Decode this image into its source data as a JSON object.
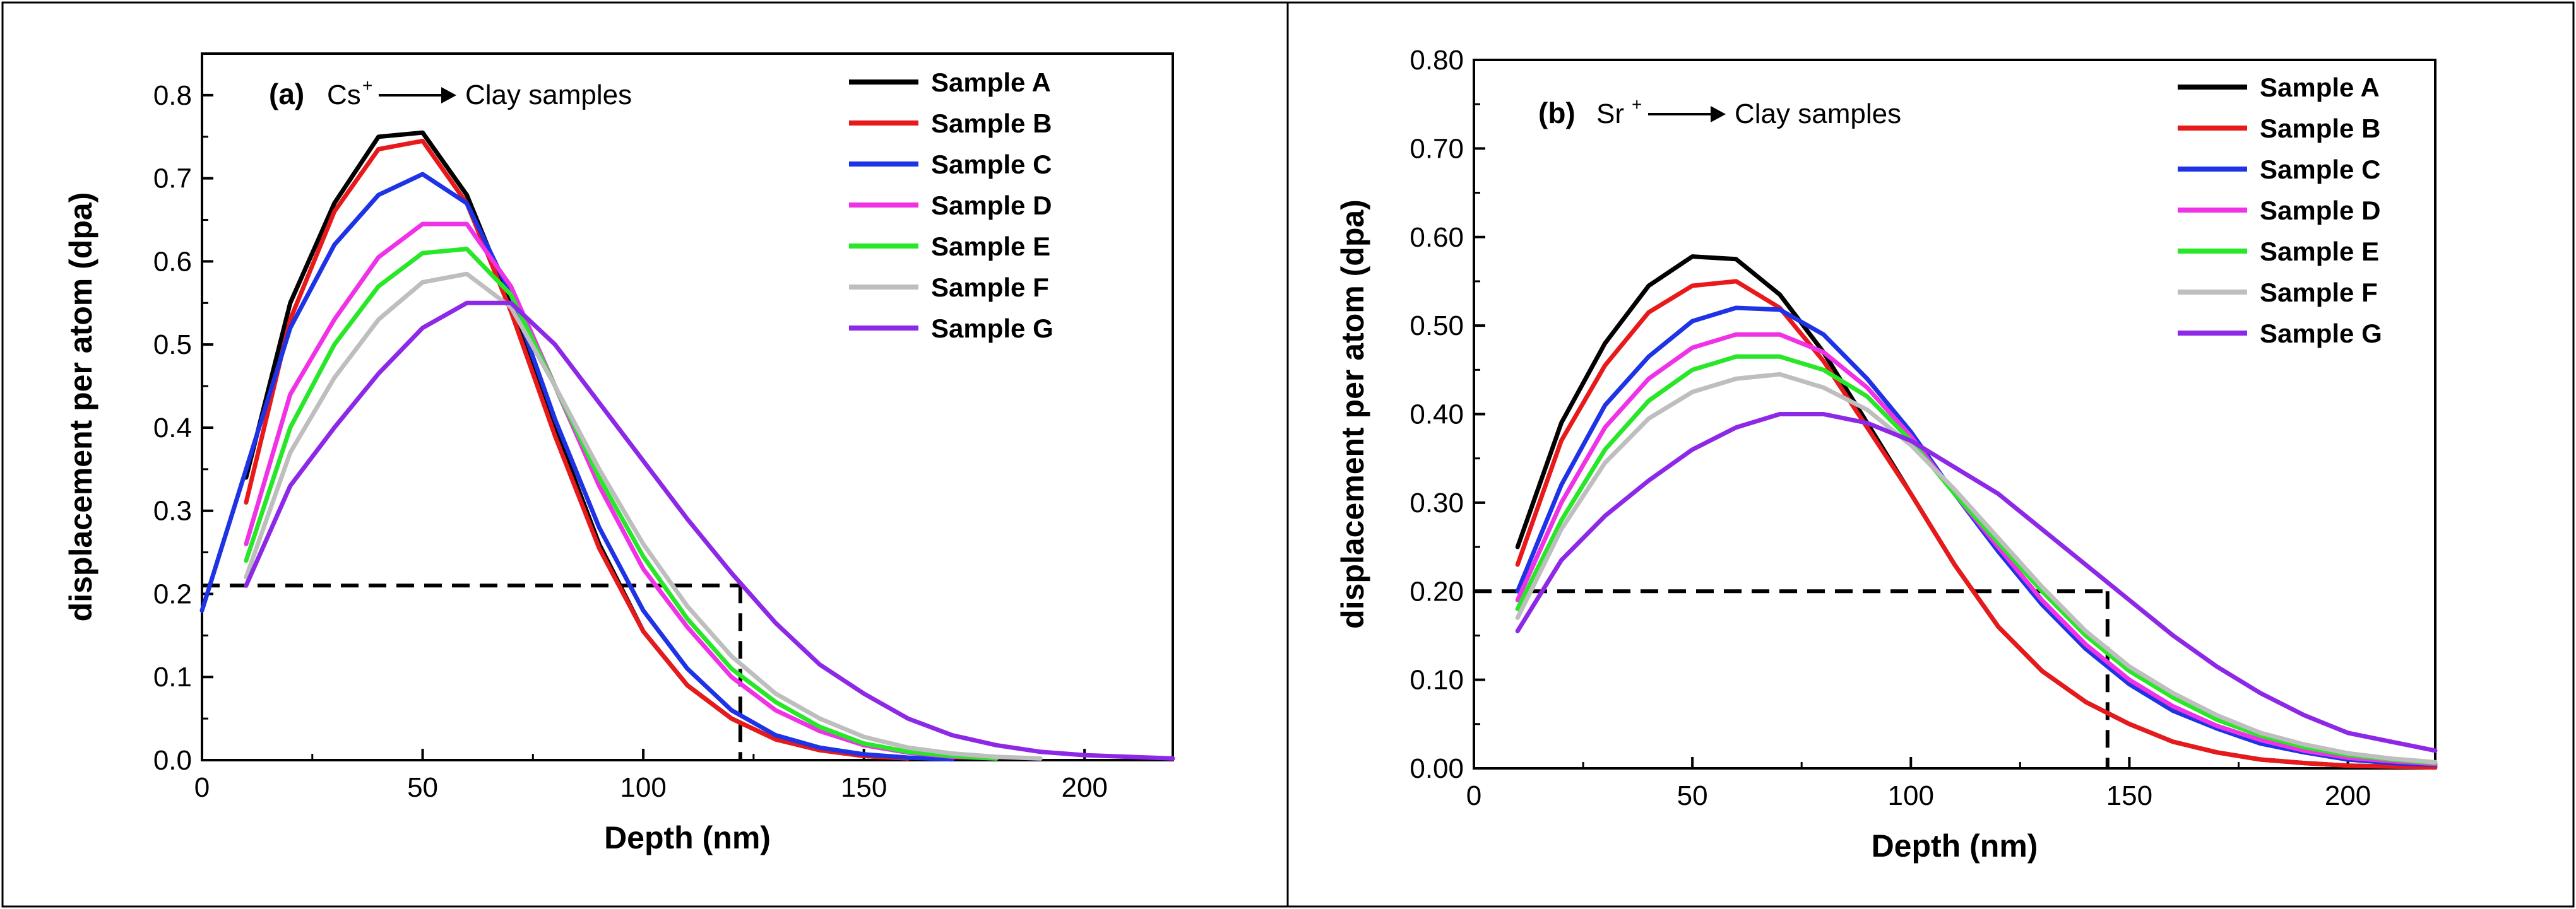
{
  "chart_data": [
    {
      "type": "line",
      "panel_label": "(a)",
      "ion": "Cs",
      "ion_charge": "+",
      "target": "Clay samples",
      "xlabel": "Depth (nm)",
      "ylabel": "displacement per atom (dpa)",
      "xlim": [
        0,
        220
      ],
      "ylim": [
        0,
        0.85
      ],
      "xticks": [
        0,
        50,
        100,
        150,
        200
      ],
      "yticks": [
        0.0,
        0.1,
        0.2,
        0.3,
        0.4,
        0.5,
        0.6,
        0.7,
        0.8
      ],
      "ytick_labels": [
        "0.0",
        "0.1",
        "0.2",
        "0.3",
        "0.4",
        "0.5",
        "0.6",
        "0.7",
        "0.8"
      ],
      "grid": false,
      "legend": "top-right",
      "reference_line": {
        "x": 122,
        "y": 0.21
      },
      "series": [
        {
          "name": "Sample A",
          "color": "#000000",
          "x": [
            10,
            20,
            30,
            40,
            50,
            60,
            70,
            80,
            90,
            100,
            110,
            120,
            130,
            140,
            150,
            160
          ],
          "y": [
            0.34,
            0.55,
            0.67,
            0.75,
            0.755,
            0.68,
            0.55,
            0.4,
            0.26,
            0.155,
            0.09,
            0.05,
            0.025,
            0.012,
            0.005,
            0.002
          ]
        },
        {
          "name": "Sample B",
          "color": "#e8191b",
          "x": [
            10,
            20,
            30,
            40,
            50,
            60,
            70,
            80,
            90,
            100,
            110,
            120,
            130,
            140,
            150,
            160
          ],
          "y": [
            0.31,
            0.53,
            0.66,
            0.735,
            0.745,
            0.67,
            0.54,
            0.39,
            0.255,
            0.155,
            0.09,
            0.05,
            0.025,
            0.012,
            0.005,
            0.002
          ]
        },
        {
          "name": "Sample C",
          "color": "#1e32e6",
          "x": [
            0,
            10,
            20,
            30,
            40,
            50,
            60,
            70,
            80,
            90,
            100,
            110,
            120,
            130,
            140,
            150,
            160,
            170
          ],
          "y": [
            0.18,
            0.35,
            0.52,
            0.62,
            0.68,
            0.705,
            0.67,
            0.56,
            0.41,
            0.28,
            0.18,
            0.11,
            0.06,
            0.03,
            0.015,
            0.007,
            0.003,
            0.001
          ]
        },
        {
          "name": "Sample D",
          "color": "#f032e6",
          "x": [
            10,
            20,
            30,
            40,
            50,
            60,
            70,
            80,
            90,
            100,
            110,
            120,
            130,
            140,
            150,
            160,
            170,
            180
          ],
          "y": [
            0.26,
            0.44,
            0.53,
            0.605,
            0.645,
            0.645,
            0.57,
            0.45,
            0.33,
            0.23,
            0.16,
            0.1,
            0.06,
            0.035,
            0.018,
            0.009,
            0.004,
            0.002
          ]
        },
        {
          "name": "Sample E",
          "color": "#28e628",
          "x": [
            10,
            20,
            30,
            40,
            50,
            60,
            70,
            80,
            90,
            100,
            110,
            120,
            130,
            140,
            150,
            160,
            170,
            180
          ],
          "y": [
            0.24,
            0.4,
            0.5,
            0.57,
            0.61,
            0.615,
            0.56,
            0.45,
            0.34,
            0.245,
            0.17,
            0.11,
            0.07,
            0.04,
            0.02,
            0.01,
            0.005,
            0.002
          ]
        },
        {
          "name": "Sample F",
          "color": "#bebebe",
          "x": [
            10,
            20,
            30,
            40,
            50,
            60,
            70,
            80,
            90,
            100,
            110,
            120,
            130,
            140,
            150,
            160,
            170,
            180,
            190
          ],
          "y": [
            0.22,
            0.37,
            0.46,
            0.53,
            0.575,
            0.585,
            0.545,
            0.45,
            0.35,
            0.26,
            0.185,
            0.125,
            0.08,
            0.05,
            0.028,
            0.015,
            0.008,
            0.004,
            0.002
          ]
        },
        {
          "name": "Sample G",
          "color": "#8c28e6",
          "x": [
            10,
            20,
            30,
            40,
            50,
            60,
            70,
            80,
            90,
            100,
            110,
            120,
            130,
            140,
            150,
            160,
            170,
            180,
            190,
            200,
            210,
            220
          ],
          "y": [
            0.21,
            0.33,
            0.4,
            0.465,
            0.52,
            0.55,
            0.55,
            0.5,
            0.43,
            0.36,
            0.29,
            0.225,
            0.165,
            0.115,
            0.08,
            0.05,
            0.03,
            0.018,
            0.01,
            0.006,
            0.004,
            0.002
          ]
        }
      ]
    },
    {
      "type": "line",
      "panel_label": "(b)",
      "ion": "Sr",
      "ion_charge": "+",
      "target": "Clay samples",
      "xlabel": "Depth (nm)",
      "ylabel": "displacement per atom (dpa)",
      "xlim": [
        0,
        220
      ],
      "ylim": [
        0,
        0.8
      ],
      "xticks": [
        0,
        50,
        100,
        150,
        200
      ],
      "yticks": [
        0.0,
        0.1,
        0.2,
        0.3,
        0.4,
        0.5,
        0.6,
        0.7,
        0.8
      ],
      "ytick_labels": [
        "0.00",
        "0.10",
        "0.20",
        "0.30",
        "0.40",
        "0.50",
        "0.60",
        "0.70",
        "0.80"
      ],
      "grid": false,
      "legend": "top-right",
      "reference_line": {
        "x": 145,
        "y": 0.2
      },
      "series": [
        {
          "name": "Sample A",
          "color": "#000000",
          "x": [
            10,
            20,
            30,
            40,
            50,
            60,
            70,
            80,
            90,
            100,
            110,
            120,
            130,
            140,
            150,
            160,
            170,
            180,
            190,
            200,
            210,
            220
          ],
          "y": [
            0.25,
            0.39,
            0.48,
            0.545,
            0.578,
            0.575,
            0.535,
            0.47,
            0.39,
            0.31,
            0.23,
            0.16,
            0.11,
            0.075,
            0.05,
            0.03,
            0.018,
            0.01,
            0.006,
            0.003,
            0.002,
            0.001
          ]
        },
        {
          "name": "Sample B",
          "color": "#e8191b",
          "x": [
            10,
            20,
            30,
            40,
            50,
            60,
            70,
            80,
            90,
            100,
            110,
            120,
            130,
            140,
            150,
            160,
            170,
            180,
            190,
            200,
            210,
            220
          ],
          "y": [
            0.23,
            0.37,
            0.455,
            0.515,
            0.545,
            0.55,
            0.52,
            0.46,
            0.385,
            0.31,
            0.23,
            0.16,
            0.11,
            0.075,
            0.05,
            0.03,
            0.018,
            0.01,
            0.006,
            0.003,
            0.002,
            0.001
          ]
        },
        {
          "name": "Sample C",
          "color": "#1e32e6",
          "x": [
            10,
            20,
            30,
            40,
            50,
            60,
            70,
            80,
            90,
            100,
            110,
            120,
            130,
            140,
            150,
            160,
            170,
            180,
            190,
            200,
            210,
            220
          ],
          "y": [
            0.2,
            0.32,
            0.41,
            0.465,
            0.505,
            0.52,
            0.518,
            0.49,
            0.44,
            0.38,
            0.31,
            0.245,
            0.185,
            0.135,
            0.095,
            0.065,
            0.045,
            0.028,
            0.018,
            0.01,
            0.006,
            0.004
          ]
        },
        {
          "name": "Sample D",
          "color": "#f032e6",
          "x": [
            10,
            20,
            30,
            40,
            50,
            60,
            70,
            80,
            90,
            100,
            110,
            120,
            130,
            140,
            150,
            160,
            170,
            180,
            190,
            200,
            210,
            220
          ],
          "y": [
            0.19,
            0.3,
            0.385,
            0.44,
            0.475,
            0.49,
            0.49,
            0.47,
            0.43,
            0.375,
            0.31,
            0.25,
            0.19,
            0.14,
            0.1,
            0.07,
            0.048,
            0.032,
            0.02,
            0.012,
            0.008,
            0.005
          ]
        },
        {
          "name": "Sample E",
          "color": "#28e628",
          "x": [
            10,
            20,
            30,
            40,
            50,
            60,
            70,
            80,
            90,
            100,
            110,
            120,
            130,
            140,
            150,
            160,
            170,
            180,
            190,
            200,
            210,
            220
          ],
          "y": [
            0.18,
            0.28,
            0.36,
            0.415,
            0.45,
            0.465,
            0.465,
            0.45,
            0.42,
            0.37,
            0.31,
            0.255,
            0.2,
            0.15,
            0.11,
            0.08,
            0.055,
            0.037,
            0.024,
            0.015,
            0.01,
            0.006
          ]
        },
        {
          "name": "Sample F",
          "color": "#bebebe",
          "x": [
            10,
            20,
            30,
            40,
            50,
            60,
            70,
            80,
            90,
            100,
            110,
            120,
            130,
            140,
            150,
            160,
            170,
            180,
            190,
            200,
            210,
            220
          ],
          "y": [
            0.17,
            0.27,
            0.345,
            0.395,
            0.425,
            0.44,
            0.445,
            0.43,
            0.405,
            0.365,
            0.315,
            0.26,
            0.205,
            0.155,
            0.115,
            0.085,
            0.06,
            0.04,
            0.027,
            0.017,
            0.011,
            0.007
          ]
        },
        {
          "name": "Sample G",
          "color": "#8c28e6",
          "x": [
            10,
            20,
            30,
            40,
            50,
            60,
            70,
            80,
            90,
            100,
            110,
            120,
            130,
            140,
            150,
            160,
            170,
            180,
            190,
            200,
            210,
            220
          ],
          "y": [
            0.155,
            0.235,
            0.285,
            0.325,
            0.36,
            0.385,
            0.4,
            0.4,
            0.39,
            0.37,
            0.34,
            0.31,
            0.27,
            0.23,
            0.19,
            0.15,
            0.115,
            0.085,
            0.06,
            0.04,
            0.03,
            0.02
          ]
        }
      ]
    }
  ]
}
